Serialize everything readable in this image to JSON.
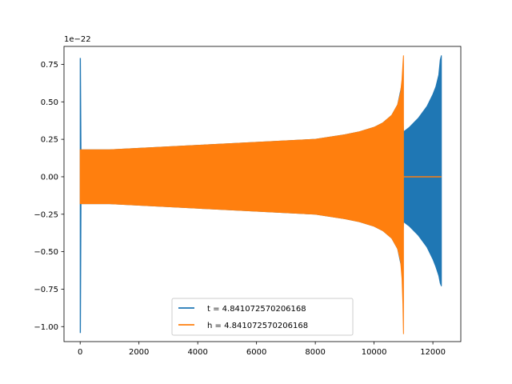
{
  "chart_data": {
    "type": "line",
    "title": "",
    "xlabel": "",
    "ylabel": "",
    "y_offset_label": "1e−22",
    "xlim": [
      -550,
      12950
    ],
    "ylim": [
      -1.1,
      0.87
    ],
    "x_ticks": [
      0,
      2000,
      4000,
      6000,
      8000,
      10000,
      12000
    ],
    "x_tick_labels": [
      "0",
      "2000",
      "4000",
      "6000",
      "8000",
      "10000",
      "12000"
    ],
    "y_ticks": [
      0.75,
      0.5,
      0.25,
      0.0,
      -0.25,
      -0.5,
      -0.75,
      -1.0
    ],
    "y_tick_labels": [
      "0.75",
      "0.50",
      "0.25",
      "0.00",
      "−0.25",
      "−0.50",
      "−0.75",
      "−1.00"
    ],
    "grid": false,
    "legend_position": "lower-center",
    "series": [
      {
        "name": "t = 4.841072570206168",
        "color": "#1f77b4",
        "envelope_x": [
          0,
          10,
          30,
          1000,
          2000,
          3000,
          4000,
          5000,
          6000,
          7000,
          8000,
          9000,
          9500,
          10000,
          10300,
          10600,
          10800,
          10950,
          11000,
          11200,
          11500,
          11800,
          12000,
          12100,
          12200,
          12250,
          12290
        ],
        "envelope_upper": [
          0.79,
          0.79,
          0.18,
          0.18,
          0.19,
          0.2,
          0.21,
          0.22,
          0.23,
          0.24,
          0.25,
          0.28,
          0.3,
          0.33,
          0.36,
          0.41,
          0.48,
          0.62,
          0.3,
          0.33,
          0.39,
          0.47,
          0.55,
          0.6,
          0.68,
          0.78,
          0.81
        ],
        "envelope_lower": [
          -1.04,
          -1.04,
          -0.18,
          -0.18,
          -0.19,
          -0.2,
          -0.21,
          -0.22,
          -0.23,
          -0.24,
          -0.25,
          -0.28,
          -0.3,
          -0.33,
          -0.36,
          -0.41,
          -0.48,
          -0.62,
          -0.3,
          -0.33,
          -0.39,
          -0.47,
          -0.55,
          -0.6,
          -0.66,
          -0.71,
          -0.73
        ]
      },
      {
        "name": "h = 4.841072570206168",
        "color": "#ff7f0e",
        "envelope_x": [
          0,
          1000,
          2000,
          3000,
          4000,
          5000,
          6000,
          7000,
          8000,
          9000,
          9500,
          10000,
          10300,
          10600,
          10800,
          10900,
          10950,
          10980,
          11000
        ],
        "envelope_upper": [
          0.18,
          0.18,
          0.19,
          0.2,
          0.21,
          0.22,
          0.23,
          0.24,
          0.25,
          0.28,
          0.3,
          0.33,
          0.36,
          0.41,
          0.48,
          0.56,
          0.65,
          0.75,
          0.81
        ],
        "envelope_lower": [
          -0.18,
          -0.18,
          -0.19,
          -0.2,
          -0.21,
          -0.22,
          -0.23,
          -0.24,
          -0.25,
          -0.28,
          -0.3,
          -0.33,
          -0.36,
          -0.41,
          -0.48,
          -0.56,
          -0.68,
          -0.85,
          -1.05
        ],
        "flat_x": [
          11000,
          12290
        ],
        "flat_y": 0.0
      }
    ]
  }
}
